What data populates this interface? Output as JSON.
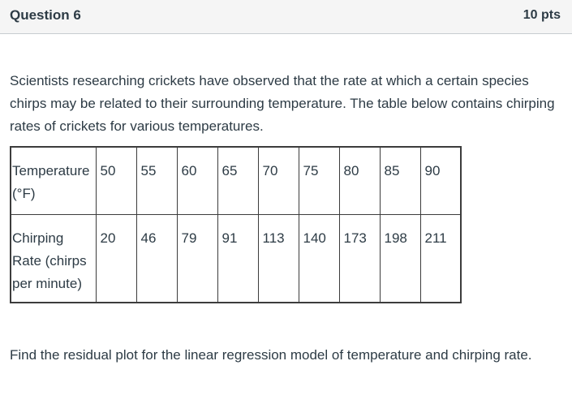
{
  "question": {
    "title": "Question 6",
    "points": "10 pts"
  },
  "prompt_text": "Scientists researching crickets have observed that the rate at which a certain species chirps may be related to their surrounding temperature. The table below contains chirping rates of crickets for various temperatures.",
  "table": {
    "rows": [
      {
        "header": "Temperature (°F)",
        "values": [
          "50",
          "55",
          "60",
          "65",
          "70",
          "75",
          "80",
          "85",
          "90"
        ]
      },
      {
        "header": "Chirping Rate (chirps per minute)",
        "values": [
          "20",
          "46",
          "79",
          "91",
          "113",
          "140",
          "173",
          "198",
          "211"
        ]
      }
    ]
  },
  "closing_text": "Find the residual plot for the linear regression model of temperature and chirping rate."
}
